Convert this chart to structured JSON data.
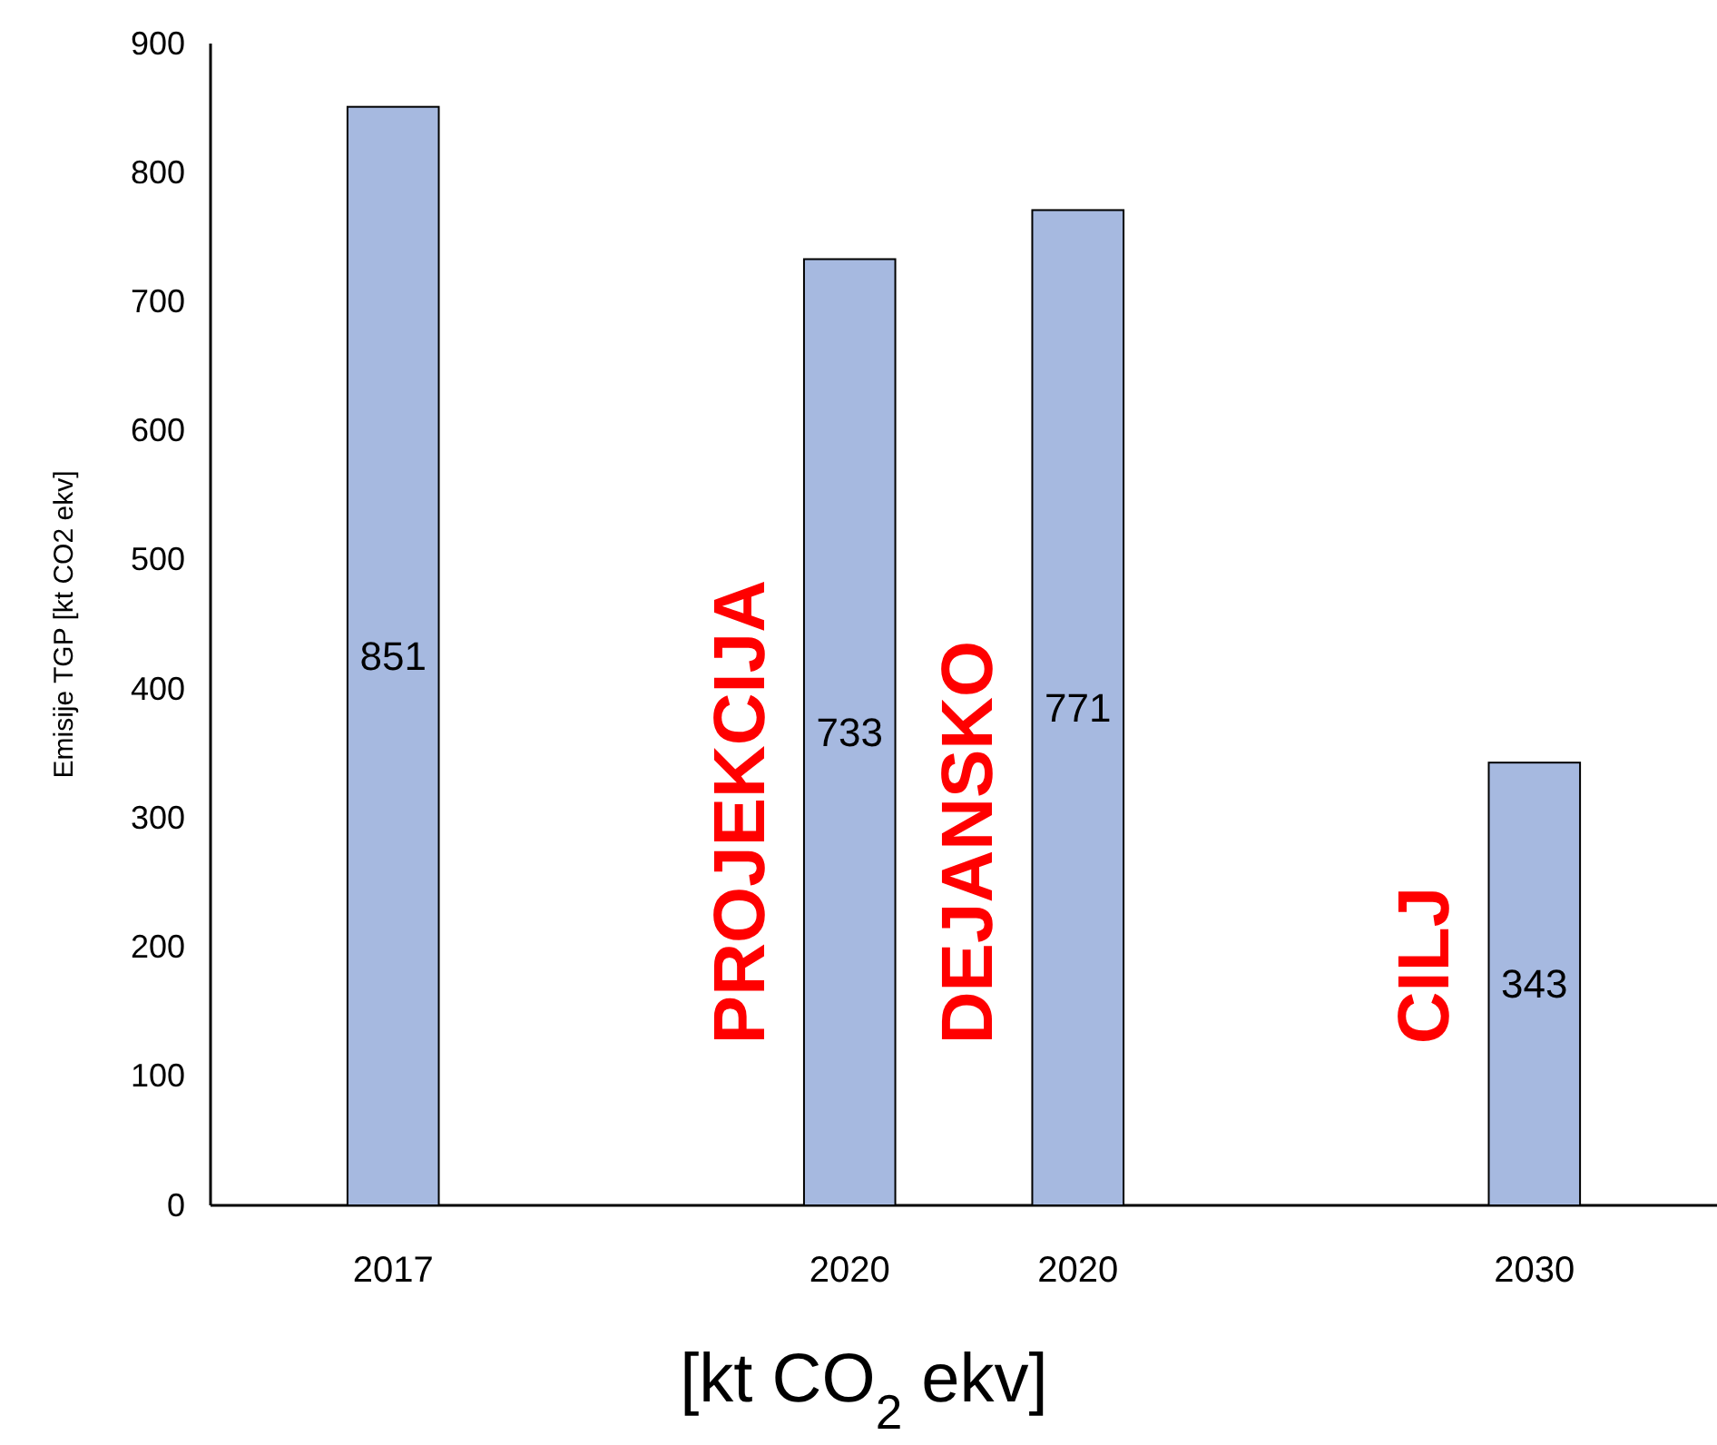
{
  "chart_data": {
    "type": "bar",
    "xlabel": "[kt CO$_{2}$ ekv]",
    "ylabel": "Emisije TGP [kt CO2 ekv]",
    "categories": [
      "2017",
      null,
      "2020",
      "2020",
      null,
      "2030"
    ],
    "values": [
      851,
      null,
      733,
      771,
      null,
      343
    ],
    "color": "#a6b9e0",
    "ylim": [
      0,
      900
    ],
    "yticks": [
      0,
      100,
      200,
      300,
      400,
      500,
      600,
      700,
      800,
      900
    ],
    "grid": false,
    "data_labels": true,
    "annotations": [
      "PROJEKCIJA",
      "DEJANSKO",
      "CILJ"
    ]
  }
}
